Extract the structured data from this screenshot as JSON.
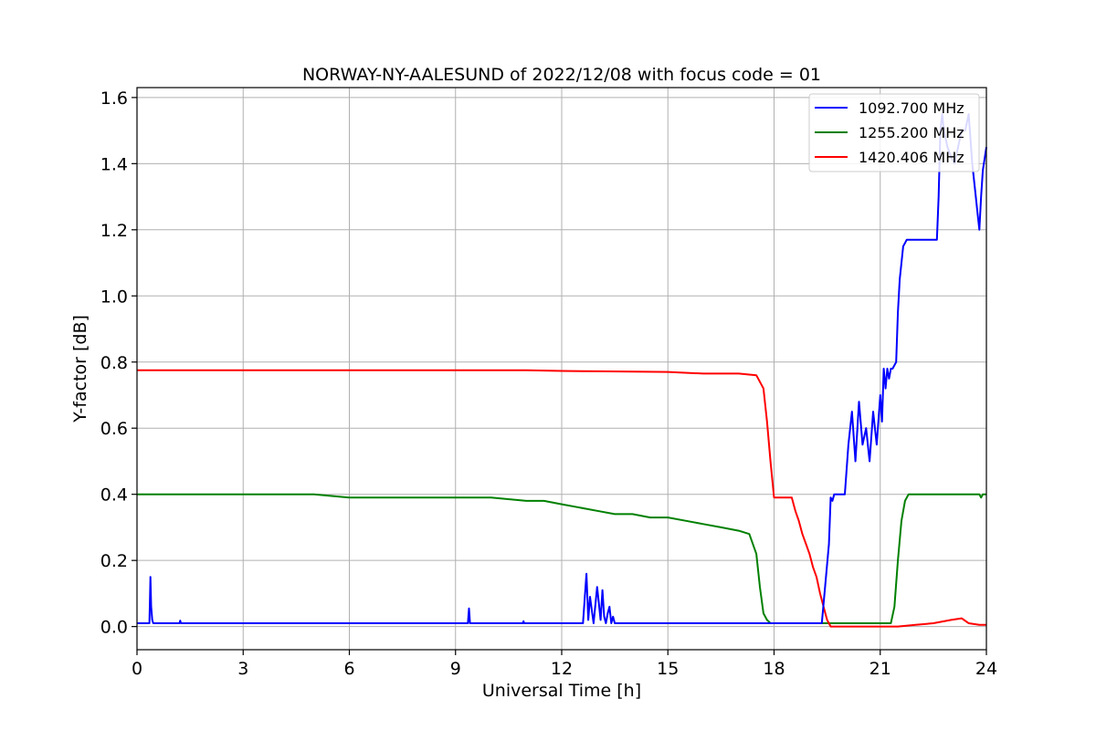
{
  "chart_data": {
    "type": "line",
    "title": "NORWAY-NY-AALESUND of 2022/12/08 with focus code = 01",
    "xlabel": "Universal Time [h]",
    "ylabel": "Y-factor [dB]",
    "xlim": [
      0,
      24
    ],
    "ylim": [
      -0.07,
      1.63
    ],
    "xticks": [
      0,
      3,
      6,
      9,
      12,
      15,
      18,
      21,
      24
    ],
    "yticks": [
      0.0,
      0.2,
      0.4,
      0.6,
      0.8,
      1.0,
      1.2,
      1.4,
      1.6
    ],
    "xtick_labels": [
      "0",
      "3",
      "6",
      "9",
      "12",
      "15",
      "18",
      "21",
      "24"
    ],
    "ytick_labels": [
      "0.0",
      "0.2",
      "0.4",
      "0.6",
      "0.8",
      "1.0",
      "1.2",
      "1.4",
      "1.6"
    ],
    "grid": true,
    "legend_position": "top-right",
    "series": [
      {
        "name": "1092.700 MHz",
        "color": "#0000ff",
        "x": [
          0,
          0.35,
          0.38,
          0.4,
          0.43,
          0.46,
          1.2,
          1.22,
          1.24,
          9.35,
          9.38,
          9.41,
          10.9,
          10.92,
          10.94,
          12.6,
          12.7,
          12.75,
          12.8,
          12.9,
          13.0,
          13.1,
          13.15,
          13.2,
          13.25,
          13.3,
          13.35,
          13.4,
          13.45,
          13.5,
          17.9,
          18.5,
          19.2,
          19.35,
          19.45,
          19.55,
          19.6,
          19.65,
          19.7,
          19.75,
          20.0,
          20.1,
          20.2,
          20.3,
          20.4,
          20.5,
          20.6,
          20.7,
          20.8,
          20.9,
          21.0,
          21.05,
          21.1,
          21.15,
          21.2,
          21.25,
          21.3,
          21.35,
          21.45,
          21.5,
          21.55,
          21.6,
          21.65,
          21.7,
          21.75,
          21.8,
          22.0,
          22.3,
          22.55,
          22.6,
          22.65,
          22.7,
          22.75,
          22.8,
          22.9,
          23.0,
          23.1,
          23.2,
          23.3,
          23.4,
          23.5,
          23.6,
          23.7,
          23.75,
          23.8,
          23.85,
          23.9,
          24.0
        ],
        "y": [
          0.01,
          0.01,
          0.15,
          0.06,
          0.02,
          0.01,
          0.01,
          0.018,
          0.01,
          0.01,
          0.055,
          0.01,
          0.01,
          0.016,
          0.01,
          0.01,
          0.16,
          0.02,
          0.09,
          0.01,
          0.12,
          0.02,
          0.11,
          0.03,
          0.01,
          0.04,
          0.06,
          0.01,
          0.03,
          0.01,
          0.01,
          0.01,
          0.01,
          0.01,
          0.13,
          0.25,
          0.39,
          0.38,
          0.4,
          0.4,
          0.4,
          0.55,
          0.65,
          0.5,
          0.68,
          0.55,
          0.6,
          0.5,
          0.65,
          0.55,
          0.7,
          0.62,
          0.78,
          0.72,
          0.78,
          0.75,
          0.78,
          0.78,
          0.8,
          0.95,
          1.05,
          1.1,
          1.15,
          1.16,
          1.17,
          1.17,
          1.17,
          1.17,
          1.17,
          1.17,
          1.3,
          1.5,
          1.55,
          1.5,
          1.45,
          1.42,
          1.4,
          1.45,
          1.5,
          1.5,
          1.55,
          1.4,
          1.3,
          1.25,
          1.2,
          1.3,
          1.38,
          1.45
        ]
      },
      {
        "name": "1255.200 MHz",
        "color": "#008000",
        "x": [
          0,
          1,
          2,
          3,
          4,
          5,
          6,
          7,
          8,
          9,
          10,
          11,
          11.5,
          12,
          12.5,
          13,
          13.5,
          14,
          14.5,
          15,
          15.5,
          16,
          16.5,
          17,
          17.3,
          17.5,
          17.6,
          17.7,
          17.8,
          17.9,
          18,
          18.5,
          19,
          19.5,
          20,
          20.5,
          21,
          21.3,
          21.4,
          21.5,
          21.6,
          21.7,
          21.8,
          22,
          23,
          23.8,
          23.85,
          23.9,
          24
        ],
        "y": [
          0.4,
          0.4,
          0.4,
          0.4,
          0.4,
          0.4,
          0.39,
          0.39,
          0.39,
          0.39,
          0.39,
          0.38,
          0.38,
          0.37,
          0.36,
          0.35,
          0.34,
          0.34,
          0.33,
          0.33,
          0.32,
          0.31,
          0.3,
          0.29,
          0.28,
          0.22,
          0.12,
          0.04,
          0.02,
          0.01,
          0.01,
          0.01,
          0.01,
          0.01,
          0.01,
          0.01,
          0.01,
          0.01,
          0.06,
          0.2,
          0.32,
          0.38,
          0.4,
          0.4,
          0.4,
          0.4,
          0.39,
          0.4,
          0.4
        ]
      },
      {
        "name": "1420.406 MHz",
        "color": "#ff0000",
        "x": [
          0,
          1,
          2,
          3,
          4,
          5,
          6,
          7,
          8,
          9,
          10,
          11,
          12,
          13,
          14,
          15,
          16,
          17,
          17.5,
          17.7,
          17.8,
          17.9,
          18,
          18.3,
          18.5,
          18.6,
          18.7,
          18.8,
          18.9,
          19,
          19.1,
          19.2,
          19.3,
          19.4,
          19.5,
          19.6,
          20,
          21,
          21.5,
          22,
          22.5,
          23,
          23.3,
          23.5,
          23.8,
          24
        ],
        "y": [
          0.775,
          0.775,
          0.775,
          0.775,
          0.775,
          0.775,
          0.775,
          0.775,
          0.775,
          0.775,
          0.775,
          0.775,
          0.773,
          0.772,
          0.771,
          0.77,
          0.765,
          0.765,
          0.76,
          0.72,
          0.62,
          0.5,
          0.39,
          0.39,
          0.39,
          0.35,
          0.32,
          0.28,
          0.25,
          0.22,
          0.18,
          0.15,
          0.1,
          0.06,
          0.02,
          0.0,
          0.0,
          0.0,
          0.0,
          0.005,
          0.01,
          0.02,
          0.025,
          0.01,
          0.005,
          0.005
        ]
      }
    ]
  }
}
